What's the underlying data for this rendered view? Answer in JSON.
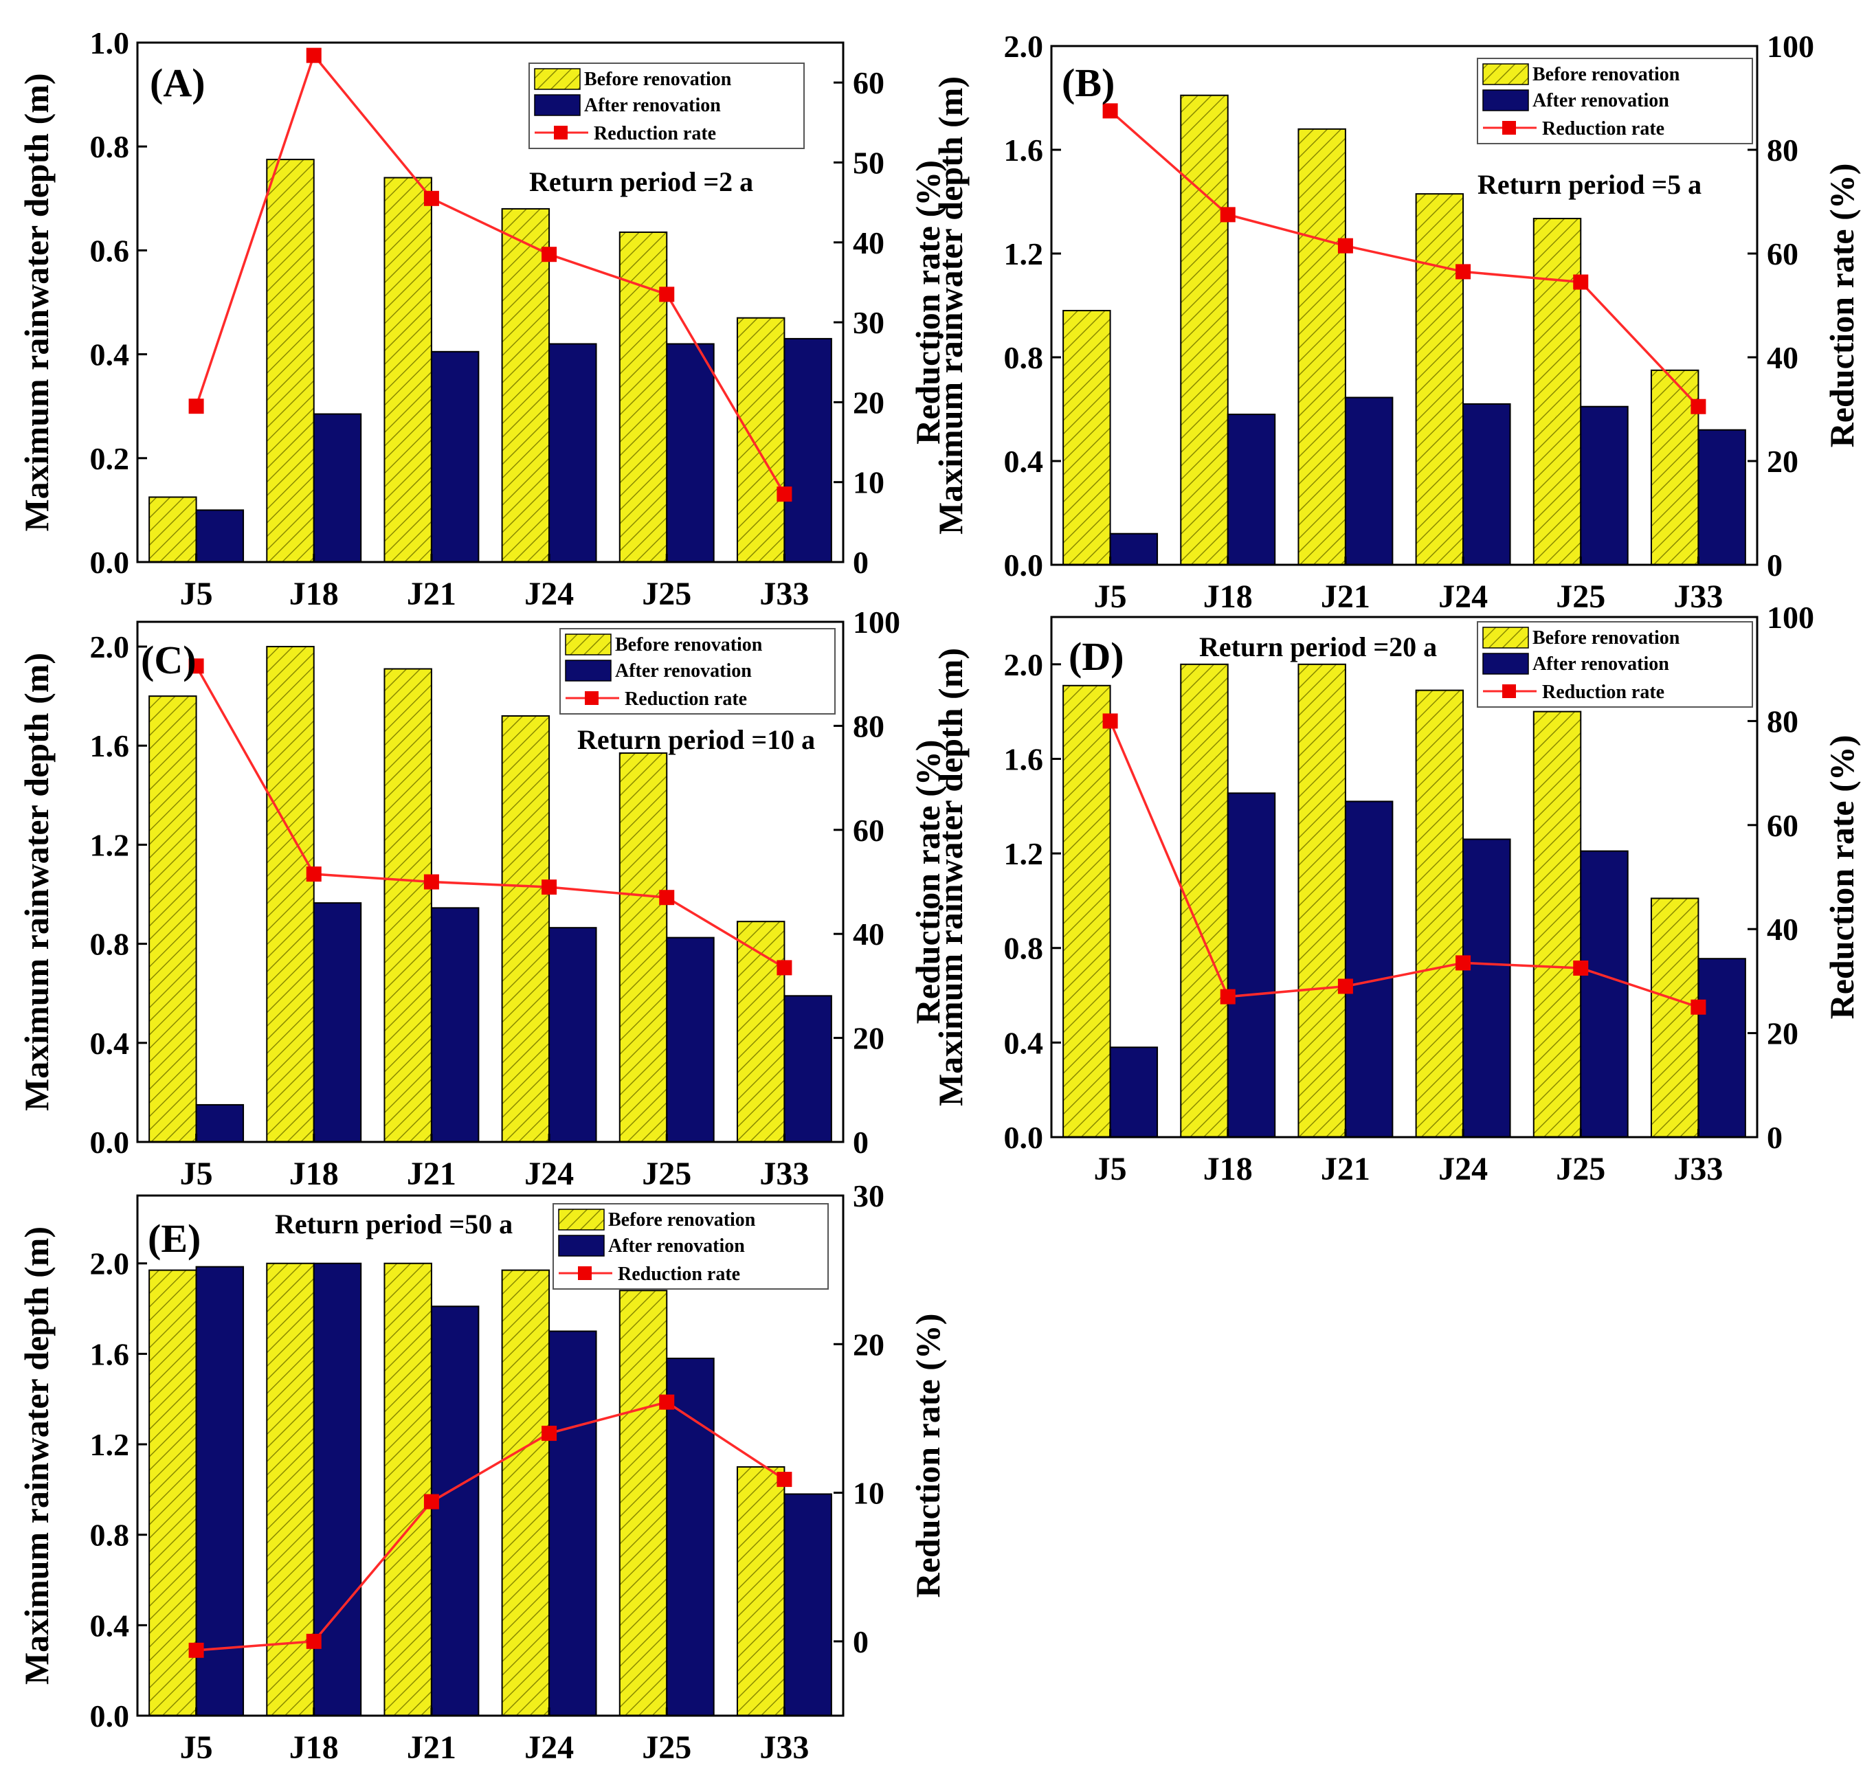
{
  "colors": {
    "before": "#f2ef1b",
    "before_hatch": "#8a8a00",
    "after": "#0b0b6e",
    "line": "#ff2a2a",
    "marker": "#ee0000"
  },
  "legend": {
    "before": "Before renovation",
    "after": "After renovation",
    "rate": "Reduction rate"
  },
  "y_left_label": "Maximum rainwater depth (m)",
  "y_right_label": "Reduction rate (%)",
  "chart_data": [
    {
      "type": "bar",
      "panel": "(A)",
      "annotation": "Return period =2 a",
      "categories": [
        "J5",
        "J18",
        "J21",
        "J24",
        "J25",
        "J33"
      ],
      "series": [
        {
          "name": "Before renovation",
          "values": [
            0.125,
            0.775,
            0.74,
            0.68,
            0.635,
            0.47
          ]
        },
        {
          "name": "After renovation",
          "values": [
            0.1,
            0.285,
            0.405,
            0.42,
            0.42,
            0.43
          ]
        },
        {
          "name": "Reduction rate",
          "axis": "right",
          "kind": "line",
          "values": [
            19.5,
            63.4,
            45.5,
            38.5,
            33.5,
            8.5
          ]
        }
      ],
      "ylim": [
        0,
        1.0
      ],
      "yticks": [
        0.0,
        0.2,
        0.4,
        0.6,
        0.8,
        1.0
      ],
      "yticklabels": [
        "0.0",
        "0.2",
        "0.4",
        "0.6",
        "0.8",
        "1.0"
      ],
      "y2lim": [
        0,
        65
      ],
      "y2ticks": [
        0,
        10,
        20,
        30,
        40,
        50,
        60
      ],
      "legend_position": "top-right"
    },
    {
      "type": "bar",
      "panel": "(B)",
      "annotation": "Return period =5 a",
      "categories": [
        "J5",
        "J18",
        "J21",
        "J24",
        "J25",
        "J33"
      ],
      "series": [
        {
          "name": "Before renovation",
          "values": [
            0.98,
            1.81,
            1.68,
            1.43,
            1.335,
            0.75
          ]
        },
        {
          "name": "After renovation",
          "values": [
            0.12,
            0.58,
            0.645,
            0.62,
            0.61,
            0.52
          ]
        },
        {
          "name": "Reduction rate",
          "axis": "right",
          "kind": "line",
          "values": [
            87.5,
            67.5,
            61.5,
            56.5,
            54.5,
            30.5
          ]
        }
      ],
      "ylim": [
        0,
        2.0
      ],
      "yticks": [
        0.0,
        0.4,
        0.8,
        1.2,
        1.6,
        2.0
      ],
      "yticklabels": [
        "0.0",
        "0.4",
        "0.8",
        "1.2",
        "1.6",
        "2.0"
      ],
      "y2lim": [
        0,
        100
      ],
      "y2ticks": [
        0,
        20,
        40,
        60,
        80,
        100
      ],
      "legend_position": "top-right"
    },
    {
      "type": "bar",
      "panel": "(C)",
      "annotation": "Return period =10 a",
      "categories": [
        "J5",
        "J18",
        "J21",
        "J24",
        "J25",
        "J33"
      ],
      "series": [
        {
          "name": "Before renovation",
          "values": [
            1.8,
            2.0,
            1.91,
            1.72,
            1.57,
            0.89
          ]
        },
        {
          "name": "After renovation",
          "values": [
            0.15,
            0.965,
            0.945,
            0.865,
            0.825,
            0.59
          ]
        },
        {
          "name": "Reduction rate",
          "axis": "right",
          "kind": "line",
          "values": [
            91.5,
            51.5,
            50.0,
            49.0,
            47.0,
            33.5
          ]
        }
      ],
      "ylim": [
        0,
        2.1
      ],
      "yticks": [
        0.0,
        0.4,
        0.8,
        1.2,
        1.6,
        2.0
      ],
      "yticklabels": [
        "0.0",
        "0.4",
        "0.8",
        "1.2",
        "1.6",
        "2.0"
      ],
      "y2lim": [
        0,
        100
      ],
      "y2ticks": [
        0,
        20,
        40,
        60,
        80,
        100
      ],
      "legend_position": "top-right"
    },
    {
      "type": "bar",
      "panel": "(D)",
      "annotation": "Return period =20 a",
      "categories": [
        "J5",
        "J18",
        "J21",
        "J24",
        "J25",
        "J33"
      ],
      "series": [
        {
          "name": "Before renovation",
          "values": [
            1.91,
            2.0,
            2.0,
            1.89,
            1.8,
            1.01
          ]
        },
        {
          "name": "After renovation",
          "values": [
            0.38,
            1.455,
            1.42,
            1.26,
            1.21,
            0.755
          ]
        },
        {
          "name": "Reduction rate",
          "axis": "right",
          "kind": "line",
          "values": [
            80.0,
            27.0,
            29.0,
            33.5,
            32.5,
            25.0
          ]
        }
      ],
      "ylim": [
        0,
        2.2
      ],
      "yticks": [
        0.0,
        0.4,
        0.8,
        1.2,
        1.6,
        2.0
      ],
      "yticklabels": [
        "0.0",
        "0.4",
        "0.8",
        "1.2",
        "1.6",
        "2.0"
      ],
      "y2lim": [
        0,
        100
      ],
      "y2ticks": [
        0,
        20,
        40,
        60,
        80,
        100
      ],
      "legend_position": "top-right"
    },
    {
      "type": "bar",
      "panel": "(E)",
      "annotation": "Return period =50 a",
      "categories": [
        "J5",
        "J18",
        "J21",
        "J24",
        "J25",
        "J33"
      ],
      "series": [
        {
          "name": "Before renovation",
          "values": [
            1.97,
            2.0,
            2.0,
            1.97,
            1.88,
            1.1
          ]
        },
        {
          "name": "After renovation",
          "values": [
            1.985,
            2.0,
            1.81,
            1.7,
            1.58,
            0.98
          ]
        },
        {
          "name": "Reduction rate",
          "axis": "right",
          "kind": "line",
          "values": [
            -0.6,
            0.0,
            9.4,
            14.0,
            16.1,
            10.9
          ]
        }
      ],
      "ylim": [
        0,
        2.3
      ],
      "yticks": [
        0.0,
        0.4,
        0.8,
        1.2,
        1.6,
        2.0
      ],
      "yticklabels": [
        "0.0",
        "0.4",
        "0.8",
        "1.2",
        "1.6",
        "2.0"
      ],
      "y2lim": [
        -5,
        30
      ],
      "y2ticks": [
        0,
        10,
        20,
        30
      ],
      "legend_position": "top-right"
    }
  ]
}
